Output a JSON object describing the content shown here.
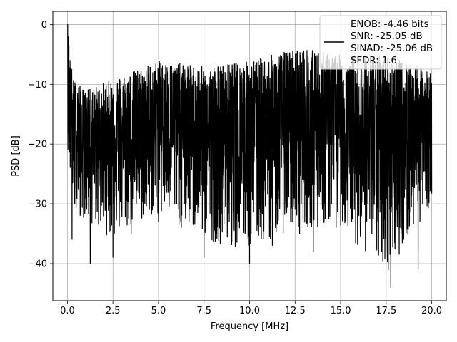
{
  "chart_data": {
    "type": "line",
    "xlabel": "Frequency [MHz]",
    "ylabel": "PSD [dB]",
    "xlim": [
      -0.8,
      20.8
    ],
    "ylim": [
      -46.2,
      2.2
    ],
    "x_ticks": [
      0.0,
      2.5,
      5.0,
      7.5,
      10.0,
      12.5,
      15.0,
      17.5,
      20.0
    ],
    "x_tick_labels": [
      "0.0",
      "2.5",
      "5.0",
      "7.5",
      "10.0",
      "12.5",
      "15.0",
      "17.5",
      "20.0"
    ],
    "y_ticks": [
      0,
      -10,
      -20,
      -30,
      -40
    ],
    "y_tick_labels": [
      "0",
      "−10",
      "−20",
      "−30",
      "−40"
    ],
    "grid": true,
    "legend_position": "top-right",
    "legend": [
      "ENOB: -4.46 bits\nSNR: -25.05 dB\nSINAD: -25.06 dB\nSFDR: 1.6"
    ],
    "series": [
      {
        "color": "#000000",
        "x": [
          0.0,
          0.05,
          0.1,
          0.15,
          0.2,
          0.25,
          0.3,
          0.4,
          0.5,
          0.6,
          0.7,
          0.8,
          1.0,
          1.25,
          1.5,
          1.75,
          2.0,
          2.25,
          2.5,
          2.75,
          3.0,
          3.25,
          3.5,
          3.75,
          4.0,
          4.25,
          4.5,
          4.75,
          5.0,
          5.25,
          5.5,
          5.75,
          6.0,
          6.25,
          6.5,
          6.75,
          7.0,
          7.25,
          7.5,
          7.75,
          8.0,
          8.25,
          8.5,
          8.75,
          9.0,
          9.25,
          9.5,
          9.75,
          10.0,
          10.25,
          10.5,
          10.75,
          11.0,
          11.25,
          11.5,
          11.75,
          12.0,
          12.25,
          12.5,
          12.75,
          13.0,
          13.25,
          13.5,
          13.75,
          14.0,
          14.25,
          14.5,
          14.75,
          15.0,
          15.25,
          15.5,
          15.75,
          16.0,
          16.25,
          16.5,
          16.75,
          17.0,
          17.25,
          17.5,
          17.75,
          18.0,
          18.25,
          18.5,
          18.75,
          19.0,
          19.25,
          19.5,
          19.75,
          20.0
        ],
        "y": [
          0.0,
          -14,
          -4,
          -24,
          -8,
          -36,
          -12,
          -30,
          -28,
          -15,
          -32,
          -20,
          -24,
          -40,
          -18,
          -27,
          -30,
          -20,
          -39,
          -16,
          -25,
          -28,
          -35,
          -18,
          -24,
          -30,
          -31,
          -20,
          -33,
          -27,
          -26,
          -19,
          -30,
          -34,
          -25,
          -22,
          -31,
          -28,
          -39,
          -20,
          -26,
          -31,
          -33,
          -24,
          -36,
          -23,
          -30,
          -35,
          -40,
          -23,
          -34,
          -29,
          -26,
          -37,
          -30,
          -24,
          -31,
          -33,
          -22,
          -35,
          -26,
          -29,
          -38,
          -25,
          -31,
          -20,
          -30,
          -34,
          -28,
          -33,
          -25,
          -31,
          -32,
          -28,
          -30,
          -26,
          -33,
          -38,
          -22,
          -44,
          -30,
          -34,
          -29,
          -31,
          -28,
          -41,
          -30,
          -27,
          -22
        ]
      }
    ],
    "envelope_note_free": true,
    "noise_band": {
      "upper": [
        [
          0.0,
          0.0
        ],
        [
          0.3,
          -9
        ],
        [
          1.0,
          -11
        ],
        [
          2.5,
          -9
        ],
        [
          5.0,
          -6
        ],
        [
          7.5,
          -7
        ],
        [
          10.0,
          -6
        ],
        [
          12.5,
          -4
        ],
        [
          13.0,
          -4
        ],
        [
          15.0,
          -5
        ],
        [
          17.5,
          -5
        ],
        [
          20.0,
          -8
        ]
      ],
      "lower": [
        [
          0.0,
          -20
        ],
        [
          0.3,
          -30
        ],
        [
          1.0,
          -33
        ],
        [
          2.5,
          -36
        ],
        [
          5.0,
          -32
        ],
        [
          7.5,
          -36
        ],
        [
          10.0,
          -38
        ],
        [
          12.5,
          -34
        ],
        [
          15.0,
          -34
        ],
        [
          17.5,
          -42
        ],
        [
          20.0,
          -30
        ]
      ]
    }
  }
}
